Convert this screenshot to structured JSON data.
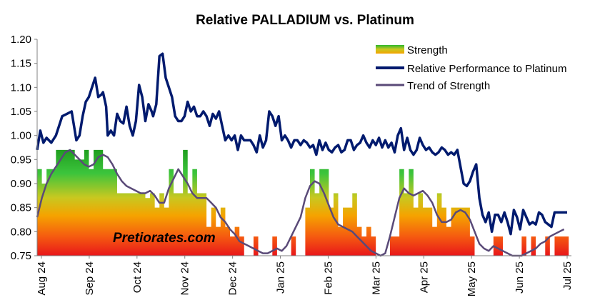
{
  "chart_data": {
    "type": "line",
    "title": "Relative PALLADIUM vs. Platinum",
    "watermark": "Pretiorates.com",
    "ylim": [
      0.75,
      1.2
    ],
    "y_ticks": [
      "1.20",
      "1.15",
      "1.10",
      "1.05",
      "1.00",
      "0.95",
      "0.90",
      "0.85",
      "0.80",
      "0.75"
    ],
    "x_tick_labels": [
      "Aug 24",
      "Sep 24",
      "Oct 24",
      "Nov 24",
      "Dec 24",
      "Jan 25",
      "Feb 25",
      "Mar 25",
      "Apr 25",
      "May 25",
      "Jun 25",
      "Jul 25"
    ],
    "legend_placement": "top-right",
    "colors": {
      "relative": "#001a6e",
      "trend": "#5a4a78",
      "strength_top": "#2eb82e",
      "strength_mid": "#f5a300",
      "strength_bottom": "#e8161a"
    },
    "series": [
      {
        "name": "Relative Performance to Platinum",
        "x": [
          0,
          2,
          4,
          6,
          9,
          12,
          14,
          16,
          19,
          22,
          25,
          27,
          29,
          31,
          33,
          35,
          37,
          39,
          41,
          42,
          44,
          45,
          47,
          49,
          51,
          53,
          55,
          57,
          59,
          61,
          63,
          65,
          67,
          69,
          71,
          73,
          74,
          76,
          78,
          80,
          82,
          84,
          86,
          88,
          90,
          92,
          94,
          96,
          98,
          100,
          102,
          104,
          106,
          108,
          110,
          112,
          114,
          116,
          118,
          120,
          122,
          124,
          126,
          128,
          130,
          132,
          134,
          136,
          138,
          140,
          142,
          144,
          146,
          148,
          150,
          152,
          154,
          156,
          158,
          160,
          162,
          164,
          166,
          168,
          170,
          172,
          174,
          176,
          178,
          180,
          182,
          184,
          186,
          188,
          190,
          192,
          194,
          196,
          198,
          200,
          202,
          204,
          206,
          208,
          210,
          212,
          214,
          216,
          218,
          220,
          222,
          224,
          226,
          228,
          230,
          232,
          234,
          236,
          238,
          240,
          242,
          244,
          246,
          248,
          250,
          252,
          254,
          256,
          258,
          260,
          262,
          264,
          266,
          268,
          270,
          272,
          274,
          276,
          278,
          280,
          282,
          284,
          286,
          288,
          290,
          292,
          294,
          296,
          298,
          300,
          302,
          304,
          306,
          308,
          310,
          312,
          314,
          316,
          318,
          320,
          322,
          324,
          326,
          328,
          330,
          332,
          334,
          336,
          338
        ],
        "values": [
          0.97,
          1.01,
          0.985,
          0.995,
          0.985,
          1.0,
          1.02,
          1.04,
          1.045,
          1.05,
          0.99,
          1.0,
          1.04,
          1.07,
          1.08,
          1.1,
          1.12,
          1.08,
          1.085,
          1.09,
          1.06,
          1.0,
          1.01,
          1.0,
          1.045,
          1.03,
          1.025,
          1.06,
          1.02,
          1.0,
          1.03,
          1.105,
          1.08,
          1.03,
          1.065,
          1.05,
          1.04,
          1.065,
          1.165,
          1.17,
          1.12,
          1.1,
          1.08,
          1.04,
          1.03,
          1.03,
          1.04,
          1.07,
          1.05,
          1.06,
          1.04,
          1.04,
          1.05,
          1.04,
          1.02,
          1.045,
          1.035,
          1.05,
          1.02,
          0.99,
          1.0,
          0.99,
          1.0,
          0.97,
          1.0,
          0.99,
          0.99,
          0.99,
          0.98,
          0.965,
          1.0,
          0.975,
          0.99,
          1.05,
          1.04,
          1.02,
          1.04,
          0.99,
          1.0,
          0.99,
          0.975,
          0.99,
          0.99,
          0.98,
          0.99,
          0.985,
          0.975,
          0.98,
          0.96,
          0.99,
          0.97,
          0.985,
          0.97,
          0.965,
          0.975,
          0.98,
          0.965,
          0.97,
          0.99,
          0.99,
          0.97,
          0.98,
          0.985,
          1.0,
          0.985,
          0.975,
          0.99,
          0.98,
          0.995,
          0.975,
          0.99,
          0.975,
          0.985,
          0.965,
          1.0,
          1.015,
          0.97,
          0.995,
          0.97,
          0.96,
          0.97,
          0.995,
          0.98,
          0.97,
          0.975,
          0.965,
          0.96,
          0.965,
          0.975,
          0.97,
          0.96,
          0.965,
          0.96,
          0.97,
          0.935,
          0.9,
          0.895,
          0.905,
          0.925,
          0.94,
          0.87,
          0.835,
          0.82,
          0.84,
          0.8,
          0.835,
          0.835,
          0.82,
          0.84,
          0.82,
          0.795,
          0.845,
          0.83,
          0.805,
          0.845,
          0.83,
          0.815,
          0.82,
          0.815,
          0.84,
          0.835,
          0.82,
          0.815,
          0.81,
          0.84,
          0.84,
          0.84,
          0.84,
          0.84
        ]
      },
      {
        "name": "Trend of Strength",
        "x": [
          0,
          3,
          6,
          9,
          12,
          15,
          18,
          21,
          24,
          27,
          30,
          33,
          36,
          39,
          42,
          45,
          48,
          51,
          54,
          57,
          60,
          63,
          66,
          69,
          72,
          75,
          78,
          81,
          84,
          87,
          90,
          93,
          96,
          99,
          102,
          105,
          108,
          111,
          114,
          117,
          120,
          123,
          126,
          129,
          132,
          135,
          138,
          141,
          144,
          147,
          150,
          153,
          156,
          159,
          162,
          165,
          168,
          171,
          174,
          177,
          180,
          183,
          186,
          189,
          192,
          195,
          198,
          201,
          204,
          207,
          210,
          213,
          216,
          219,
          222,
          225,
          228,
          231,
          234,
          237,
          240,
          243,
          246,
          249,
          252,
          255,
          258,
          261,
          264,
          267,
          270,
          273,
          276,
          279,
          282,
          285,
          288,
          291,
          294,
          297,
          300,
          303,
          306,
          309,
          312,
          315,
          318,
          321,
          324,
          327,
          330,
          333,
          336
        ],
        "values": [
          0.83,
          0.87,
          0.9,
          0.92,
          0.935,
          0.95,
          0.965,
          0.97,
          0.96,
          0.95,
          0.94,
          0.935,
          0.94,
          0.955,
          0.96,
          0.955,
          0.94,
          0.92,
          0.905,
          0.895,
          0.89,
          0.885,
          0.88,
          0.88,
          0.885,
          0.875,
          0.86,
          0.86,
          0.89,
          0.91,
          0.93,
          0.915,
          0.9,
          0.88,
          0.87,
          0.87,
          0.87,
          0.86,
          0.85,
          0.83,
          0.82,
          0.805,
          0.795,
          0.78,
          0.775,
          0.77,
          0.765,
          0.76,
          0.755,
          0.755,
          0.76,
          0.765,
          0.76,
          0.77,
          0.79,
          0.81,
          0.83,
          0.87,
          0.895,
          0.905,
          0.9,
          0.88,
          0.855,
          0.83,
          0.815,
          0.81,
          0.805,
          0.8,
          0.79,
          0.78,
          0.77,
          0.76,
          0.755,
          0.75,
          0.755,
          0.79,
          0.83,
          0.87,
          0.89,
          0.88,
          0.875,
          0.88,
          0.885,
          0.875,
          0.86,
          0.835,
          0.82,
          0.82,
          0.825,
          0.84,
          0.845,
          0.84,
          0.825,
          0.8,
          0.775,
          0.765,
          0.76,
          0.77,
          0.765,
          0.76,
          0.755,
          0.75,
          0.75,
          0.75,
          0.755,
          0.76,
          0.765,
          0.775,
          0.78,
          0.79,
          0.795,
          0.8,
          0.805
        ]
      },
      {
        "name": "Strength",
        "x": [
          0,
          3,
          6,
          9,
          12,
          15,
          18,
          21,
          24,
          27,
          30,
          33,
          36,
          39,
          42,
          45,
          48,
          51,
          54,
          57,
          60,
          63,
          66,
          69,
          72,
          75,
          78,
          81,
          84,
          87,
          90,
          93,
          96,
          99,
          102,
          105,
          108,
          111,
          114,
          117,
          120,
          123,
          126,
          129,
          132,
          135,
          138,
          141,
          144,
          147,
          150,
          153,
          156,
          159,
          162,
          165,
          168,
          171,
          174,
          177,
          180,
          183,
          186,
          189,
          192,
          195,
          198,
          201,
          204,
          207,
          210,
          213,
          216,
          219,
          222,
          225,
          228,
          231,
          234,
          237,
          240,
          243,
          246,
          249,
          252,
          255,
          258,
          261,
          264,
          267,
          270,
          273,
          276,
          279,
          282,
          285,
          288,
          291,
          294,
          297,
          300,
          303,
          306,
          309,
          312,
          315,
          318,
          321,
          324,
          327,
          330,
          333,
          336
        ],
        "values": [
          0.93,
          0.9,
          0.93,
          0.93,
          0.97,
          0.97,
          0.97,
          0.97,
          0.95,
          0.95,
          0.97,
          0.93,
          0.97,
          0.97,
          0.93,
          0.93,
          0.93,
          0.88,
          0.88,
          0.88,
          0.88,
          0.88,
          0.88,
          0.87,
          0.88,
          0.85,
          0.88,
          0.85,
          0.93,
          0.88,
          0.88,
          0.97,
          0.88,
          0.93,
          0.88,
          0.88,
          0.81,
          0.85,
          0.81,
          0.85,
          0.81,
          0.79,
          0.81,
          0.79,
          0.75,
          0.75,
          0.79,
          0.75,
          0.75,
          0.75,
          0.79,
          0.75,
          0.75,
          0.75,
          0.79,
          0.75,
          0.75,
          0.85,
          0.93,
          0.88,
          0.93,
          0.93,
          0.85,
          0.88,
          0.81,
          0.85,
          0.85,
          0.88,
          0.81,
          0.79,
          0.81,
          0.79,
          0.75,
          0.75,
          0.75,
          0.79,
          0.79,
          0.93,
          0.88,
          0.93,
          0.85,
          0.88,
          0.85,
          0.85,
          0.81,
          0.88,
          0.85,
          0.81,
          0.85,
          0.85,
          0.85,
          0.85,
          0.79,
          0.75,
          0.75,
          0.75,
          0.75,
          0.79,
          0.79,
          0.75,
          0.75,
          0.75,
          0.75,
          0.79,
          0.75,
          0.79,
          0.75,
          0.75,
          0.79,
          0.75,
          0.79,
          0.79,
          0.79
        ]
      }
    ]
  }
}
